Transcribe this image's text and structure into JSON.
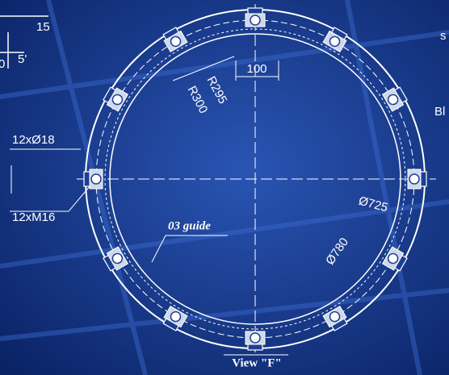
{
  "labels": {
    "dim_15": "15",
    "dim_5": "5'",
    "dim_0": "0",
    "dim_100": "100",
    "r295": "R295",
    "r300": "R300",
    "holes": "12xØ18",
    "threads": "12xM16",
    "guide": "03 guide",
    "d725": "Ø725",
    "d780": "Ø780",
    "view": "View \"F\"",
    "side_s": "s",
    "side_bl": "Bl"
  }
}
